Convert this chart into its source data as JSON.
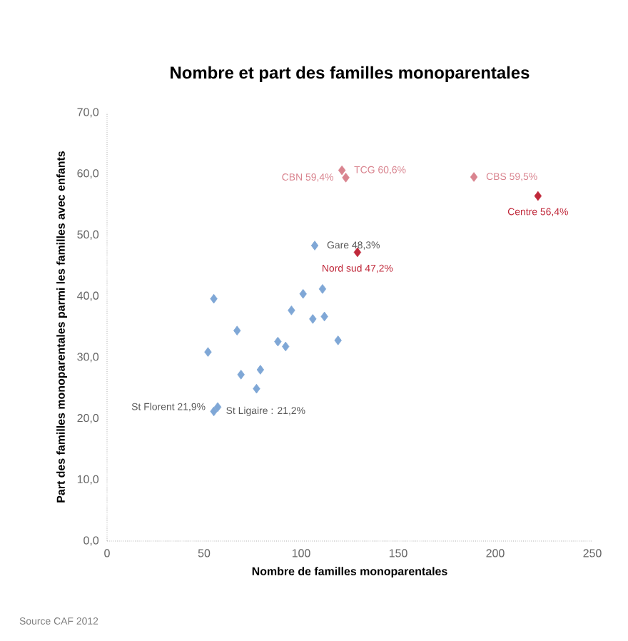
{
  "chart_data": {
    "type": "scatter",
    "title": "Nombre et part des familles monoparentales",
    "xlabel": "Nombre de familles monoparentales",
    "ylabel": "Part des familles monoparentales parmi les familles avec enfants",
    "xlim": [
      0,
      250
    ],
    "ylim": [
      0,
      70
    ],
    "xticks": [
      0,
      50,
      100,
      150,
      200,
      250
    ],
    "yticks": [
      {
        "value": 0,
        "label": "0,0"
      },
      {
        "value": 10,
        "label": "10,0"
      },
      {
        "value": 20,
        "label": "20,0"
      },
      {
        "value": 30,
        "label": "30,0"
      },
      {
        "value": 40,
        "label": "40,0"
      },
      {
        "value": 50,
        "label": "50,0"
      },
      {
        "value": 60,
        "label": "60,0"
      },
      {
        "value": 70,
        "label": "70,0"
      }
    ],
    "marker": "diamond",
    "series": [
      {
        "color": "#7fa7d6",
        "x": [
          55,
          57,
          52,
          55,
          69,
          67,
          77,
          79,
          88,
          92,
          95,
          101,
          106,
          112,
          111,
          119,
          107
        ],
        "values": [
          21.2,
          21.9,
          30.9,
          39.6,
          27.2,
          34.4,
          24.9,
          28.0,
          32.6,
          31.8,
          37.7,
          40.4,
          36.3,
          36.7,
          41.2,
          32.8,
          48.3
        ]
      },
      {
        "color": "#d9848f",
        "x": [
          121,
          123,
          189
        ],
        "values": [
          60.6,
          59.4,
          59.5
        ]
      },
      {
        "color": "#c0283a",
        "x": [
          129,
          222
        ],
        "values": [
          47.2,
          56.4
        ]
      }
    ],
    "annotations": [
      {
        "text": "St Ligaire : 21,2%",
        "x": 55,
        "y": 21.2
      },
      {
        "text": "St Florent 21,9%",
        "x": 57,
        "y": 21.9
      },
      {
        "text": "Gare 48,3%",
        "x": 107,
        "y": 48.3
      },
      {
        "text": "Nord sud 47,2%",
        "x": 129,
        "y": 47.2
      },
      {
        "text": "TCG 60,6%",
        "x": 121,
        "y": 60.6
      },
      {
        "text": "CBN 59,4%",
        "x": 123,
        "y": 59.4
      },
      {
        "text": "CBS 59,5%",
        "x": 189,
        "y": 59.5
      },
      {
        "text": "Centre 56,4%",
        "x": 222,
        "y": 56.4
      },
      "Source CAF 2012"
    ]
  }
}
